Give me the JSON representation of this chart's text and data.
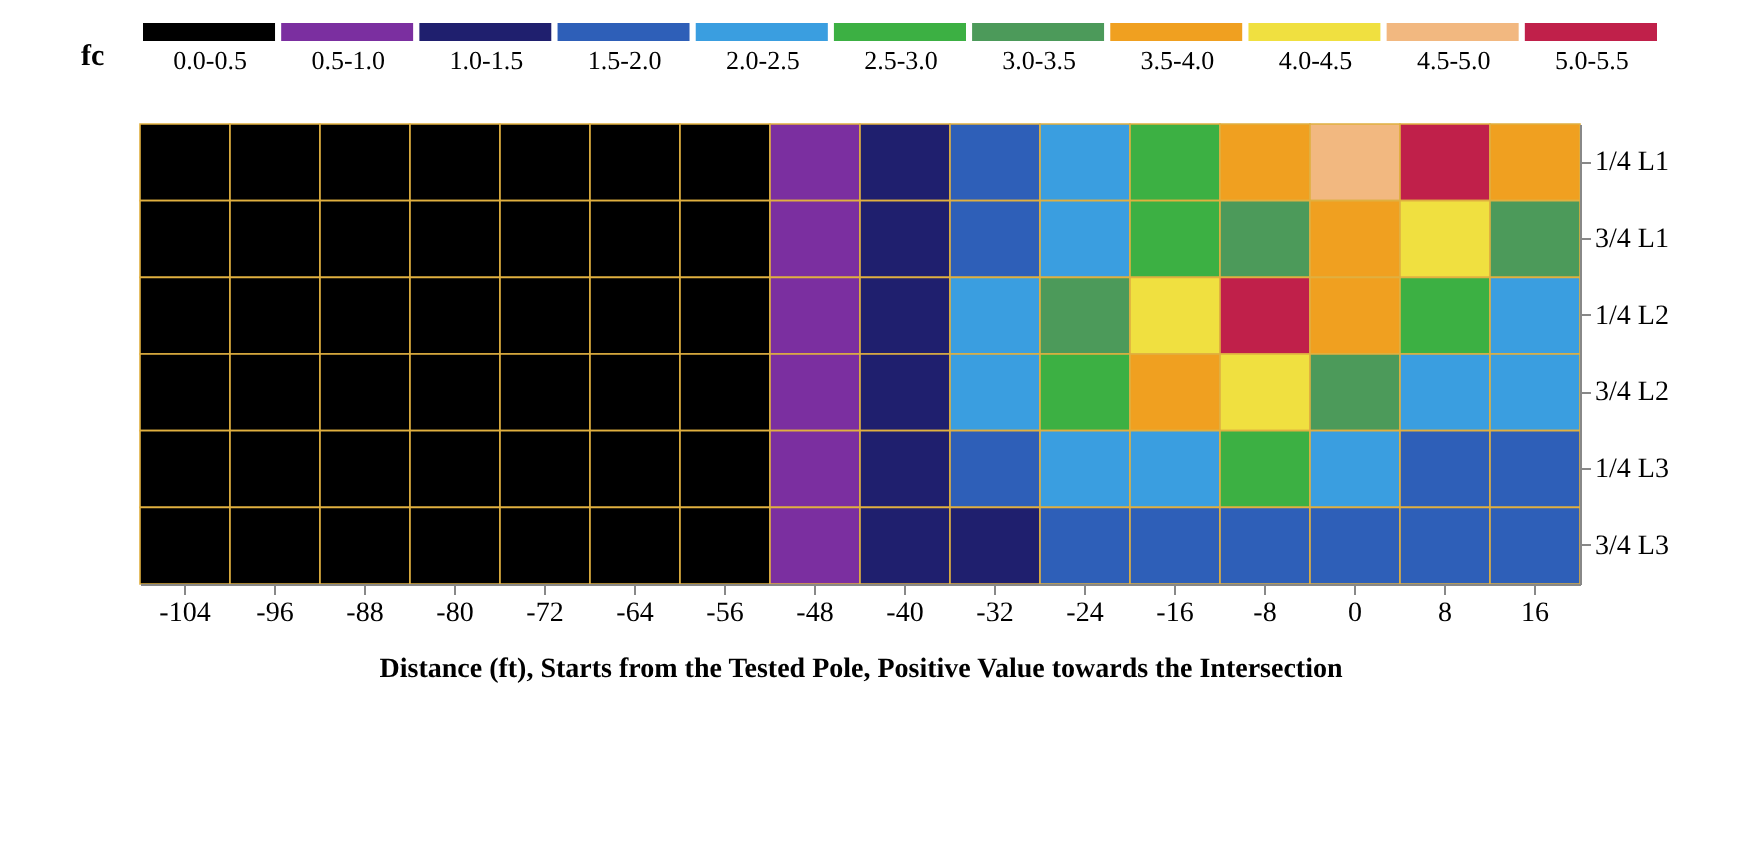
{
  "chart_data": {
    "type": "heatmap",
    "xlabel": "Distance (ft), Starts from the Tested Pole, Positive Value towards the Intersection",
    "clabel": "fc",
    "categories": [
      "-104",
      "-96",
      "-88",
      "-80",
      "-72",
      "-64",
      "-56",
      "-48",
      "-40",
      "-32",
      "-24",
      "-16",
      "-8",
      "0",
      "8",
      "16"
    ],
    "y_categories": [
      "1/4 L1",
      "3/4 L1",
      "1/4 L2",
      "3/4 L2",
      "1/4 L3",
      "3/4 L3"
    ],
    "cells": [
      [
        0.2,
        0.2,
        0.2,
        0.2,
        0.2,
        0.2,
        0.3,
        0.8,
        1.3,
        1.8,
        2.3,
        2.8,
        3.5,
        4.6,
        5.1,
        3.8
      ],
      [
        0.2,
        0.2,
        0.2,
        0.2,
        0.2,
        0.2,
        0.3,
        0.8,
        1.3,
        1.8,
        2.3,
        2.8,
        3.2,
        3.8,
        4.2,
        3.0
      ],
      [
        0.2,
        0.2,
        0.2,
        0.2,
        0.2,
        0.2,
        0.3,
        0.8,
        1.4,
        2.2,
        3.0,
        4.2,
        5.2,
        3.6,
        2.6,
        2.2
      ],
      [
        0.2,
        0.2,
        0.2,
        0.2,
        0.2,
        0.2,
        0.3,
        0.7,
        1.3,
        2.0,
        2.7,
        3.6,
        4.0,
        3.0,
        2.2,
        2.0
      ],
      [
        0.1,
        0.1,
        0.1,
        0.1,
        0.1,
        0.1,
        0.2,
        0.6,
        1.2,
        1.6,
        2.0,
        2.4,
        2.6,
        2.2,
        1.8,
        1.7
      ],
      [
        0.1,
        0.1,
        0.1,
        0.1,
        0.1,
        0.1,
        0.2,
        0.6,
        1.1,
        1.4,
        1.6,
        1.8,
        1.9,
        1.8,
        1.6,
        1.6
      ]
    ],
    "clim": [
      0,
      5.5
    ],
    "cticks": [
      {
        "value": 0.25,
        "label": "0.0-0.5"
      },
      {
        "value": 0.75,
        "label": "0.5-1.0"
      },
      {
        "value": 1.25,
        "label": "1.0-1.5"
      },
      {
        "value": 1.75,
        "label": "1.5-2.0"
      },
      {
        "value": 2.25,
        "label": "2.0-2.5"
      },
      {
        "value": 2.75,
        "label": "2.5-3.0"
      },
      {
        "value": 3.25,
        "label": "3.0-3.5"
      },
      {
        "value": 3.75,
        "label": "3.5-4.0"
      },
      {
        "value": 4.25,
        "label": "4.0-4.5"
      },
      {
        "value": 4.75,
        "label": "4.5-5.0"
      },
      {
        "value": 5.25,
        "label": "5.0-5.5"
      }
    ],
    "colors": [
      "#000000",
      "#7b2fa0",
      "#1f1f6e",
      "#2e5fb8",
      "#3a9ee0",
      "#3cb043",
      "#4c9a5a",
      "#f0a020",
      "#f0e040",
      "#f2b880",
      "#c0204a"
    ]
  }
}
